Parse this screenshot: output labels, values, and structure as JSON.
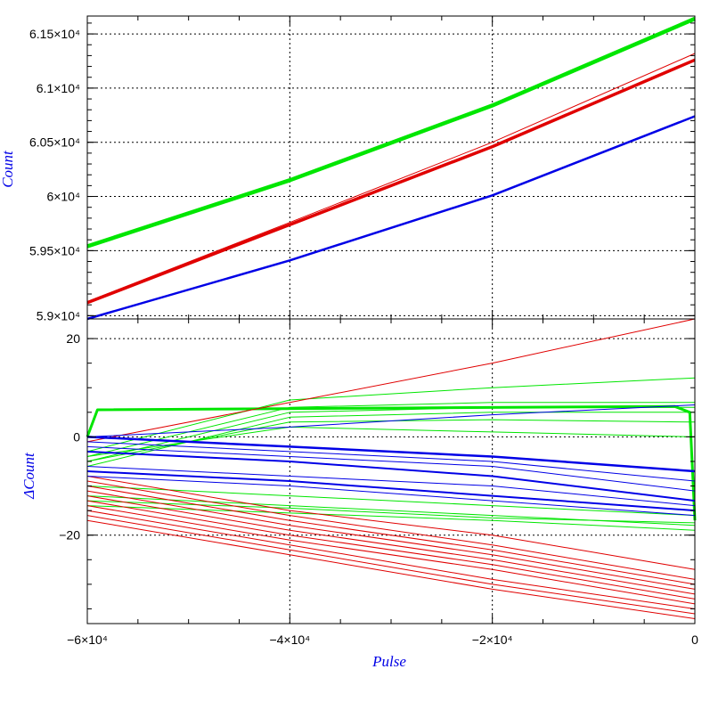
{
  "chart_data": [
    {
      "type": "line",
      "panel": "top",
      "ylabel": "Count",
      "xlabel": "",
      "xlim": [
        -60000,
        0
      ],
      "ylim": [
        58870,
        61665
      ],
      "grid": true,
      "yticks": [
        {
          "value": 58900,
          "label": "5.9×10⁴"
        },
        {
          "value": 59500,
          "label": "5.95×10⁴"
        },
        {
          "value": 60000,
          "label": "6×10⁴"
        },
        {
          "value": 60500,
          "label": "6.05×10⁴"
        },
        {
          "value": 61000,
          "label": "6.1×10⁴"
        },
        {
          "value": 61500,
          "label": "6.15×10⁴"
        }
      ],
      "series": [
        {
          "color": "#00e600",
          "width": 4.5,
          "x": [
            -60000,
            -40000,
            -20000,
            0
          ],
          "values": [
            59540,
            60150,
            60840,
            61640
          ]
        },
        {
          "color": "#e00000",
          "width": 3.5,
          "x": [
            -60000,
            -40000,
            -20000,
            0
          ],
          "values": [
            59020,
            59740,
            60460,
            61260
          ]
        },
        {
          "color": "#e00000",
          "width": 1,
          "x": [
            -60000,
            -40000,
            -20000,
            0
          ],
          "values": [
            59030,
            59760,
            60500,
            61320
          ]
        },
        {
          "color": "#0000e6",
          "width": 2.5,
          "x": [
            -60000,
            -40000,
            -20000,
            0
          ],
          "values": [
            58870,
            59410,
            60010,
            60740
          ]
        }
      ]
    },
    {
      "type": "line",
      "panel": "bottom",
      "ylabel": "ΔCount",
      "xlabel": "Pulse",
      "xlim": [
        -60000,
        0
      ],
      "ylim": [
        -38,
        24
      ],
      "grid": true,
      "xticks": [
        {
          "value": -60000,
          "label": "−6×10⁴"
        },
        {
          "value": -40000,
          "label": "−4×10⁴"
        },
        {
          "value": -20000,
          "label": "−2×10⁴"
        },
        {
          "value": 0,
          "label": "0"
        }
      ],
      "yticks": [
        {
          "value": 20,
          "label": "20"
        },
        {
          "value": 0,
          "label": "0"
        },
        {
          "value": -20,
          "label": "−20"
        }
      ],
      "series": [
        {
          "color": "#00e600",
          "width": 3,
          "x": [
            -60000,
            -59000,
            -2000,
            -500,
            0
          ],
          "values": [
            0,
            5.5,
            6.2,
            5,
            -17
          ]
        },
        {
          "color": "#00e600",
          "width": 1,
          "x": [
            -60000,
            -40000,
            -20000,
            0
          ],
          "values": [
            -3,
            7.5,
            10,
            12
          ]
        },
        {
          "color": "#00e600",
          "width": 1,
          "x": [
            -60000,
            -40000,
            -20000,
            0
          ],
          "values": [
            -4,
            6,
            7,
            7
          ]
        },
        {
          "color": "#00e600",
          "width": 1,
          "x": [
            -60000,
            -40000,
            -20000,
            0
          ],
          "values": [
            -5,
            5,
            6,
            6
          ]
        },
        {
          "color": "#00e600",
          "width": 1,
          "x": [
            -60000,
            -40000,
            -20000,
            0
          ],
          "values": [
            -6,
            4,
            5,
            5
          ]
        },
        {
          "color": "#00e600",
          "width": 1,
          "x": [
            -60000,
            -40000,
            -20000,
            0
          ],
          "values": [
            -5,
            3,
            3.5,
            3
          ]
        },
        {
          "color": "#00e600",
          "width": 1,
          "x": [
            -60000,
            -40000,
            -20000,
            0
          ],
          "values": [
            -4,
            2,
            1,
            0
          ]
        },
        {
          "color": "#00e600",
          "width": 1,
          "x": [
            -60000,
            -40000,
            -20000,
            0
          ],
          "values": [
            -10,
            -12,
            -14,
            -16
          ]
        },
        {
          "color": "#00e600",
          "width": 1,
          "x": [
            -60000,
            -40000,
            -20000,
            0
          ],
          "values": [
            -12,
            -14,
            -16,
            -18
          ]
        },
        {
          "color": "#00e600",
          "width": 1,
          "x": [
            -60000,
            -40000,
            -20000,
            0
          ],
          "values": [
            -14,
            -15.5,
            -17,
            -19
          ]
        },
        {
          "color": "#00e600",
          "width": 1,
          "x": [
            -60000,
            -40000,
            -20000,
            0
          ],
          "values": [
            -13,
            -14.5,
            -16.5,
            -17.5
          ]
        },
        {
          "color": "#e00000",
          "width": 1,
          "x": [
            -60000,
            -40000,
            -20000,
            0
          ],
          "values": [
            -1,
            7,
            15,
            24
          ]
        },
        {
          "color": "#e00000",
          "width": 1,
          "x": [
            -60000,
            -40000,
            -20000,
            0
          ],
          "values": [
            -8,
            -15,
            -20,
            -27
          ]
        },
        {
          "color": "#e00000",
          "width": 1,
          "x": [
            -60000,
            -40000,
            -20000,
            0
          ],
          "values": [
            -9,
            -16,
            -22,
            -29
          ]
        },
        {
          "color": "#e00000",
          "width": 1,
          "x": [
            -60000,
            -40000,
            -20000,
            0
          ],
          "values": [
            -10,
            -17,
            -23,
            -30
          ]
        },
        {
          "color": "#e00000",
          "width": 1,
          "x": [
            -60000,
            -40000,
            -20000,
            0
          ],
          "values": [
            -11,
            -18,
            -24,
            -31
          ]
        },
        {
          "color": "#e00000",
          "width": 1,
          "x": [
            -60000,
            -40000,
            -20000,
            0
          ],
          "values": [
            -12,
            -19,
            -25,
            -32
          ]
        },
        {
          "color": "#e00000",
          "width": 1,
          "x": [
            -60000,
            -40000,
            -20000,
            0
          ],
          "values": [
            -13,
            -20,
            -26,
            -33
          ]
        },
        {
          "color": "#e00000",
          "width": 1,
          "x": [
            -60000,
            -40000,
            -20000,
            0
          ],
          "values": [
            -14,
            -21,
            -27,
            -34
          ]
        },
        {
          "color": "#e00000",
          "width": 1,
          "x": [
            -60000,
            -40000,
            -20000,
            0
          ],
          "values": [
            -15,
            -22,
            -29,
            -35
          ]
        },
        {
          "color": "#e00000",
          "width": 1,
          "x": [
            -60000,
            -40000,
            -20000,
            0
          ],
          "values": [
            -16,
            -23,
            -30,
            -36
          ]
        },
        {
          "color": "#e00000",
          "width": 1,
          "x": [
            -60000,
            -40000,
            -20000,
            0
          ],
          "values": [
            -17,
            -24,
            -31,
            -37
          ]
        },
        {
          "color": "#0000e6",
          "width": 1,
          "x": [
            -60000,
            -40000,
            -20000,
            0
          ],
          "values": [
            0,
            2,
            4.5,
            6.5
          ]
        },
        {
          "color": "#0000e6",
          "width": 2.5,
          "x": [
            -60000,
            -40000,
            -20000,
            0
          ],
          "values": [
            0,
            -2,
            -4,
            -7
          ]
        },
        {
          "color": "#0000e6",
          "width": 1,
          "x": [
            -60000,
            -40000,
            -20000,
            0
          ],
          "values": [
            -1,
            -3,
            -5,
            -9
          ]
        },
        {
          "color": "#0000e6",
          "width": 1,
          "x": [
            -60000,
            -40000,
            -20000,
            0
          ],
          "values": [
            -2,
            -4,
            -6,
            -11
          ]
        },
        {
          "color": "#0000e6",
          "width": 2,
          "x": [
            -60000,
            -40000,
            -20000,
            0
          ],
          "values": [
            -3,
            -5,
            -8,
            -13
          ]
        },
        {
          "color": "#0000e6",
          "width": 1,
          "x": [
            -60000,
            -40000,
            -20000,
            0
          ],
          "values": [
            -6,
            -8,
            -10,
            -14
          ]
        },
        {
          "color": "#0000e6",
          "width": 2,
          "x": [
            -60000,
            -40000,
            -20000,
            0
          ],
          "values": [
            -7,
            -9,
            -12,
            -15
          ]
        },
        {
          "color": "#0000e6",
          "width": 1,
          "x": [
            -60000,
            -40000,
            -20000,
            0
          ],
          "values": [
            -8,
            -10,
            -13,
            -16
          ]
        }
      ]
    }
  ],
  "colors": {
    "axis_title": "#0000e6",
    "green": "#00e600",
    "red": "#e00000",
    "blue": "#0000e6"
  }
}
